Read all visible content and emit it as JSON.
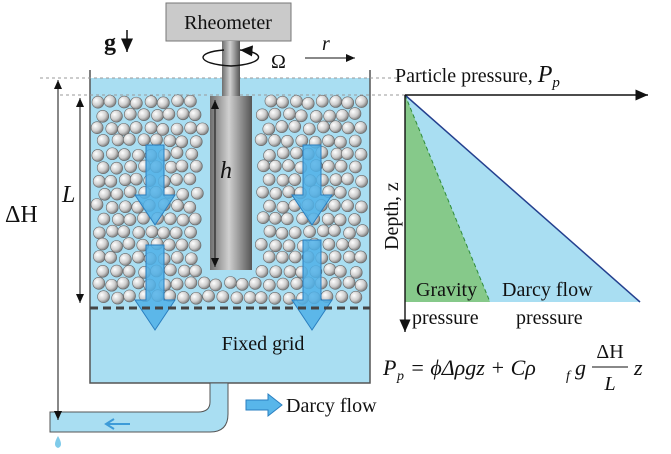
{
  "labels": {
    "rheometer": "Rheometer",
    "gravity": "g",
    "omega": "Ω",
    "radius": "r",
    "shaft_height": "h",
    "bed_height": "L",
    "head": "ΔH",
    "fixed_grid": "Fixed grid",
    "darcy_flow": "Darcy flow"
  },
  "plot": {
    "x_axis": {
      "text": "Particle pressure, ",
      "symbol": "P",
      "subscript": "p"
    },
    "y_axis": "Depth, z",
    "gravity_pressure": [
      "Gravity",
      "pressure"
    ],
    "darcy_pressure": [
      "Darcy flow",
      "pressure"
    ]
  },
  "equation": {
    "lhs": "P",
    "lhs_sub": "p",
    "middle": "= ϕΔρgz + Cρ",
    "rho_sub": "f",
    "g": "g",
    "numerator": "ΔH",
    "denominator": "L",
    "tail": "z"
  }
}
